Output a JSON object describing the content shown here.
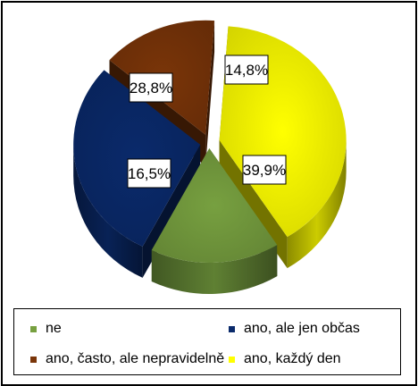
{
  "chart_data": {
    "type": "pie",
    "categories": [
      "ne",
      "ano, ale jen občas",
      "ano, často, ale nepravidelně",
      "ano, každý den"
    ],
    "values": [
      16.5,
      28.8,
      14.8,
      39.9
    ],
    "data_labels": [
      "16,5%",
      "28,8%",
      "14,8%",
      "39,9%"
    ],
    "colors": [
      "#77a040",
      "#0a2a6b",
      "#7a3509",
      "#ffff00"
    ],
    "style": "3d-exploded",
    "legend_position": "bottom"
  },
  "legend": [
    {
      "label": "ne",
      "color": "#77a040"
    },
    {
      "label": "ano, ale jen občas",
      "color": "#0a2a6b"
    },
    {
      "label": "ano, často, ale nepravidelně",
      "color": "#7a3509"
    },
    {
      "label": "ano, každý den",
      "color": "#ffff00"
    }
  ]
}
